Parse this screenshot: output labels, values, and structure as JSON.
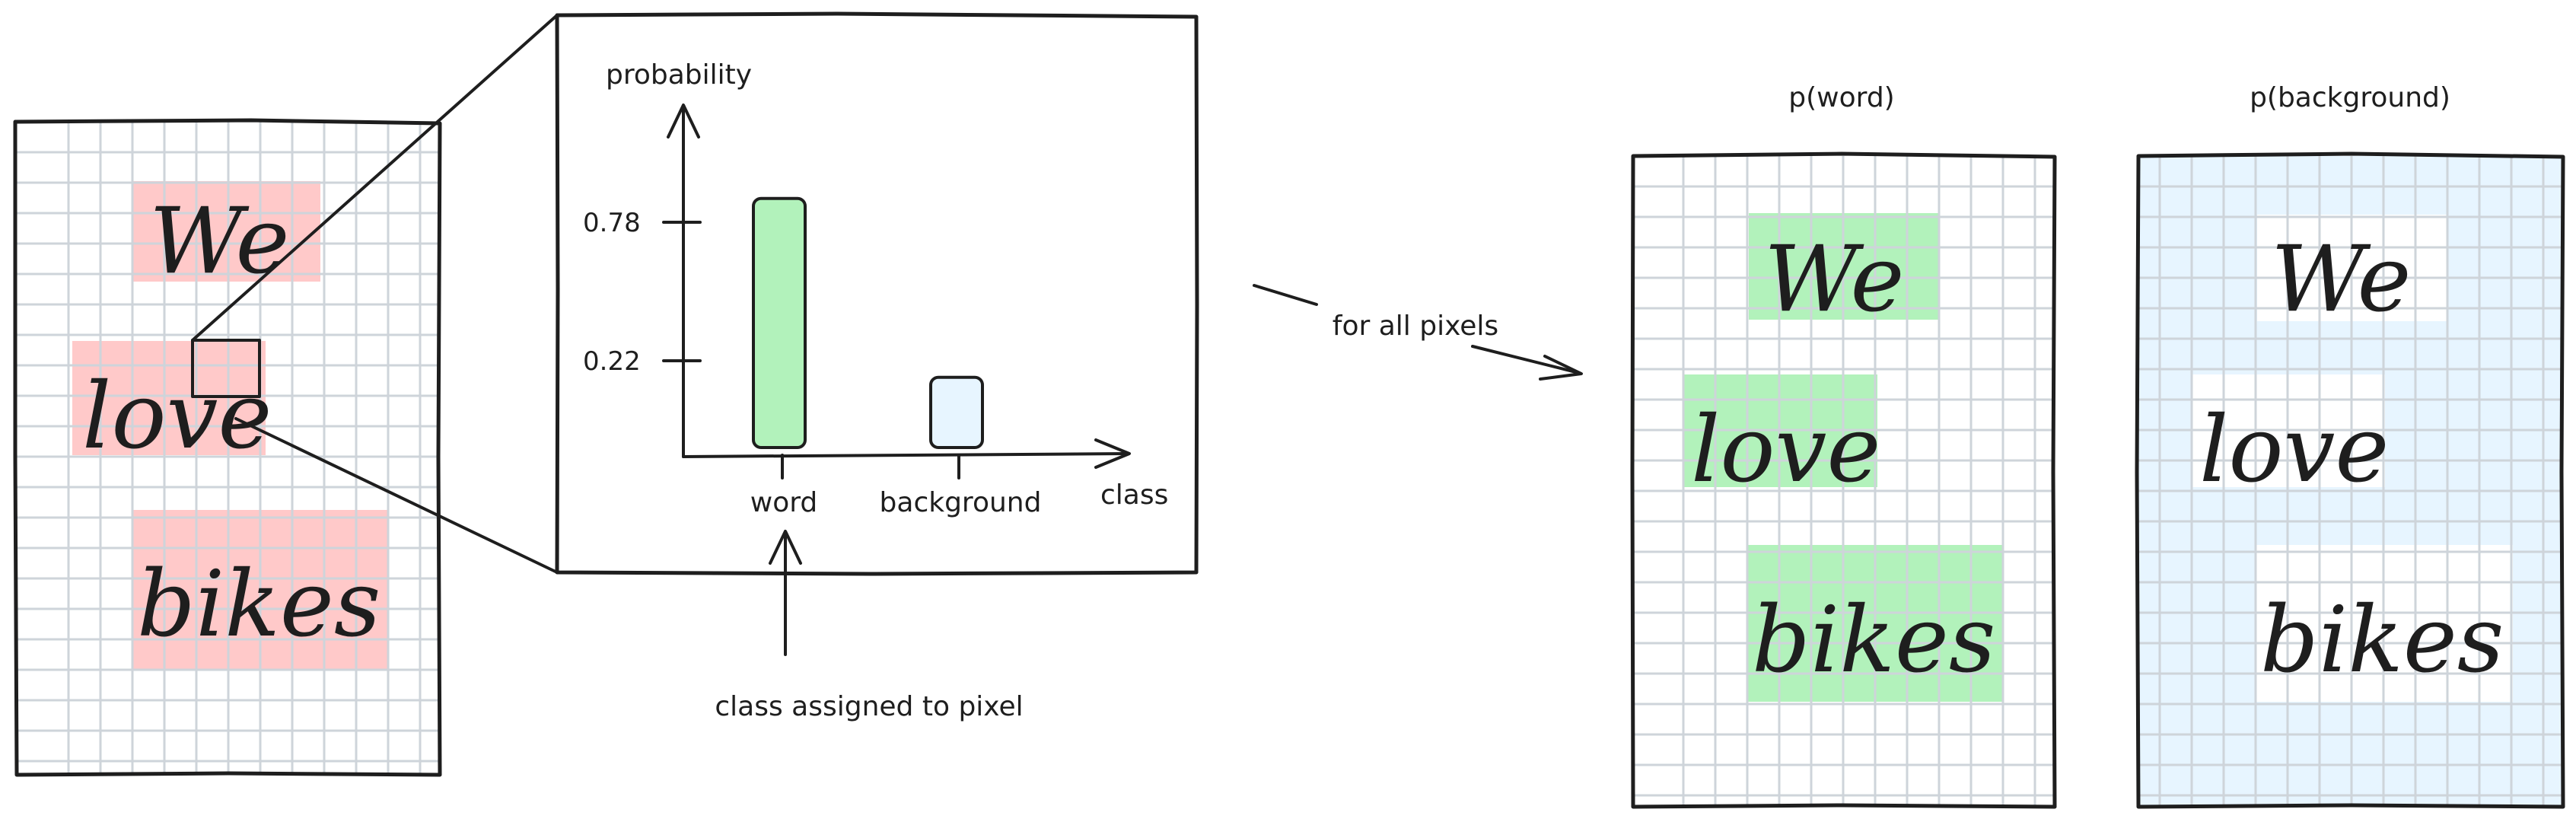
{
  "input_image": {
    "words": [
      "We",
      "love",
      "bikes"
    ],
    "highlight_color": "#ffc9c9"
  },
  "chart": {
    "ylabel": "probability",
    "xlabel": "class",
    "tick_labels": [
      "0.78",
      "0.22"
    ]
  },
  "chart_data": {
    "type": "bar",
    "categories": [
      "word",
      "background"
    ],
    "values": [
      0.78,
      0.22
    ],
    "title": "",
    "xlabel": "class",
    "ylabel": "probability",
    "yticks": [
      0.78,
      0.22
    ],
    "ylim": [
      0,
      1.3
    ],
    "grid": false,
    "colors": [
      "#b2f2bb",
      "#e7f5ff"
    ]
  },
  "annotations": {
    "for_all_pixels": "for all pixels",
    "class_assigned": "class assigned to pixel"
  },
  "outputs": {
    "word_map": {
      "title": "p(word)",
      "highlight_color": "#b2f2bb",
      "background_color": "#ffffff"
    },
    "background_map": {
      "title": "p(background)",
      "highlight_color": "#ffffff",
      "background_color": "#e7f5ff"
    }
  },
  "colors": {
    "stroke": "#1e1e1e",
    "grid": "#ced4da"
  }
}
